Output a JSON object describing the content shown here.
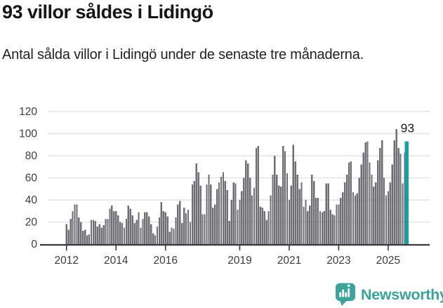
{
  "header": {
    "title": "93 villor såldes i Lidingö",
    "subtitle": "Antal sålda villor i Lidingö under de senaste tre månaderna."
  },
  "footer": {
    "brand": "Newsworthy",
    "logo_icon": "speech-bubble-with-bar-chart-and-exclamation"
  },
  "colors": {
    "bar": "#6e6e74",
    "highlight": "#11a3a0",
    "axis": "#3a3a3a",
    "grid": "#e2e2e2",
    "tick_label": "#3d3d3d",
    "title_text": "#161616",
    "annotation": "#1c1c1c",
    "logo": "#3da49c"
  },
  "chart_data": {
    "type": "bar",
    "title": "93 villor såldes i Lidingö",
    "subtitle": "Antal sålda villor i Lidingö under de senaste tre månaderna.",
    "frequency": "monthly",
    "x_start": "2012-01",
    "x_end": "2025-10",
    "ylim": [
      0,
      120
    ],
    "yticks": [
      0,
      20,
      40,
      60,
      80,
      100,
      120
    ],
    "grid": true,
    "legend": false,
    "xticks": [
      {
        "label": "2012",
        "month_index": 0
      },
      {
        "label": "2014",
        "month_index": 24
      },
      {
        "label": "2016",
        "month_index": 48
      },
      {
        "label": "2019",
        "month_index": 84
      },
      {
        "label": "2021",
        "month_index": 108
      },
      {
        "label": "2023",
        "month_index": 132
      },
      {
        "label": "2025",
        "month_index": 156
      }
    ],
    "values": [
      18,
      13,
      23,
      30,
      36,
      36,
      24,
      20,
      12,
      13,
      8,
      9,
      22,
      22,
      21,
      16,
      18,
      15,
      17,
      23,
      23,
      32,
      35,
      30,
      30,
      26,
      20,
      19,
      15,
      23,
      35,
      32,
      26,
      19,
      22,
      29,
      15,
      23,
      29,
      29,
      25,
      18,
      10,
      8,
      16,
      24,
      38,
      30,
      29,
      25,
      11,
      15,
      14,
      24,
      36,
      39,
      19,
      33,
      28,
      31,
      20,
      54,
      57,
      73,
      65,
      53,
      27,
      27,
      54,
      63,
      54,
      33,
      36,
      50,
      56,
      61,
      65,
      57,
      49,
      21,
      40,
      56,
      55,
      31,
      40,
      48,
      60,
      76,
      73,
      60,
      44,
      51,
      87,
      89,
      34,
      33,
      30,
      22,
      30,
      44,
      63,
      80,
      63,
      53,
      52,
      89,
      84,
      64,
      40,
      53,
      90,
      75,
      63,
      50,
      56,
      34,
      40,
      30,
      35,
      63,
      57,
      42,
      42,
      30,
      29,
      30,
      55,
      55,
      31,
      27,
      26,
      36,
      36,
      42,
      47,
      56,
      63,
      74,
      75,
      47,
      44,
      46,
      60,
      72,
      83,
      92,
      93,
      74,
      63,
      52,
      56,
      76,
      87,
      94,
      60,
      44,
      48,
      56,
      72,
      94,
      104,
      87,
      82,
      55,
      83,
      93
    ],
    "highlight_last": true,
    "annotation": {
      "text": "93",
      "value": 93
    }
  }
}
